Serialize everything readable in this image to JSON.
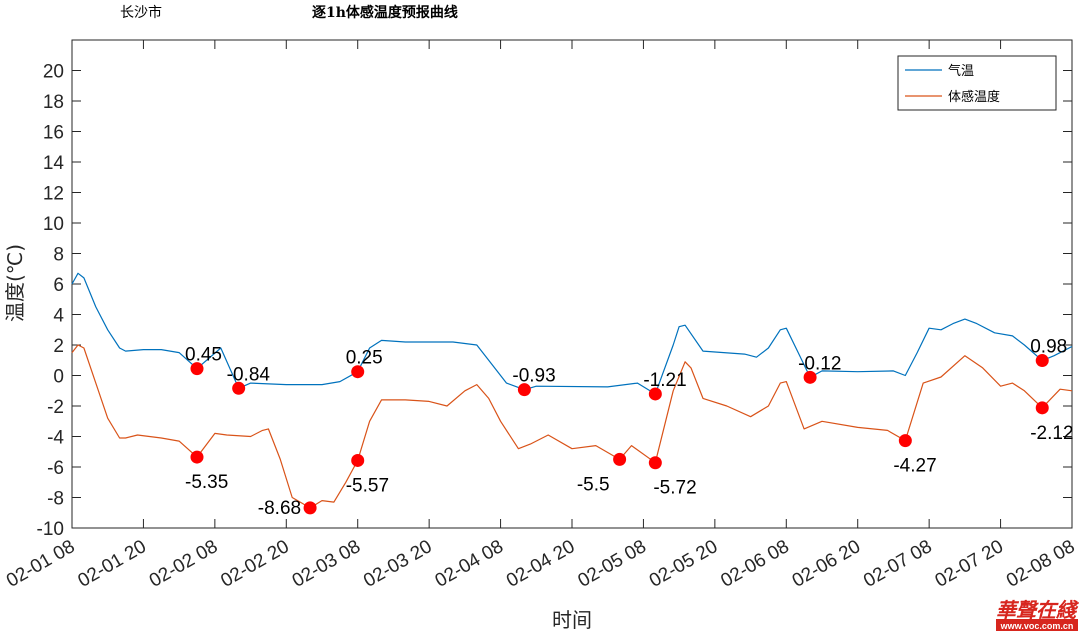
{
  "header": {
    "city": "长沙市",
    "title": "逐1h体感温度预报曲线"
  },
  "watermark": {
    "logo_text": "華聲在綫",
    "url": "www.voc.com.cn"
  },
  "chart_data": {
    "type": "line",
    "title": "逐1h体感温度预报曲线",
    "xlabel": "时间",
    "ylabel": "温度(℃)",
    "ylim": [
      -10,
      22
    ],
    "xlim": [
      "02-01 08",
      "02-08 08"
    ],
    "yticks": [
      -10,
      -8,
      -6,
      -4,
      -2,
      0,
      2,
      4,
      6,
      8,
      10,
      12,
      14,
      16,
      18,
      20
    ],
    "xticks": [
      "02-01 08",
      "02-01 20",
      "02-02 08",
      "02-02 20",
      "02-03 08",
      "02-03 20",
      "02-04 08",
      "02-04 20",
      "02-05 08",
      "02-05 20",
      "02-06 08",
      "02-06 20",
      "02-07 08",
      "02-07 20",
      "02-08 08"
    ],
    "grid": false,
    "legend_position": "top-right",
    "series": [
      {
        "name": "气温",
        "color": "#0072BD",
        "points": [
          [
            "02-01 08",
            6.0
          ],
          [
            "02-01 09",
            6.7
          ],
          [
            "02-01 10",
            6.4
          ],
          [
            "02-01 12",
            4.5
          ],
          [
            "02-01 14",
            3.0
          ],
          [
            "02-01 16",
            1.8
          ],
          [
            "02-01 17",
            1.6
          ],
          [
            "02-01 20",
            1.7
          ],
          [
            "02-01 23",
            1.7
          ],
          [
            "02-02 02",
            1.5
          ],
          [
            "02-02 05",
            0.45
          ],
          [
            "02-02 09",
            1.8
          ],
          [
            "02-02 12",
            -0.84
          ],
          [
            "02-02 14",
            -0.5
          ],
          [
            "02-02 20",
            -0.6
          ],
          [
            "02-03 02",
            -0.6
          ],
          [
            "02-03 05",
            -0.4
          ],
          [
            "02-03 08",
            0.25
          ],
          [
            "02-03 10",
            1.8
          ],
          [
            "02-03 12",
            2.3
          ],
          [
            "02-03 16",
            2.2
          ],
          [
            "02-04 00",
            2.2
          ],
          [
            "02-04 04",
            2.0
          ],
          [
            "02-04 06",
            1.0
          ],
          [
            "02-04 09",
            -0.5
          ],
          [
            "02-04 12",
            -0.93
          ],
          [
            "02-04 14",
            -0.7
          ],
          [
            "02-05 02",
            -0.75
          ],
          [
            "02-05 07",
            -0.5
          ],
          [
            "02-05 10",
            -1.21
          ],
          [
            "02-05 13",
            2.0
          ],
          [
            "02-05 14",
            3.2
          ],
          [
            "02-05 15",
            3.3
          ],
          [
            "02-05 18",
            1.6
          ],
          [
            "02-06 01",
            1.4
          ],
          [
            "02-06 03",
            1.2
          ],
          [
            "02-06 05",
            1.8
          ],
          [
            "02-06 07",
            3.0
          ],
          [
            "02-06 08",
            3.1
          ],
          [
            "02-06 10",
            1.5
          ],
          [
            "02-06 12",
            -0.12
          ],
          [
            "02-06 14",
            0.3
          ],
          [
            "02-06 20",
            0.25
          ],
          [
            "02-07 02",
            0.3
          ],
          [
            "02-07 04",
            0.0
          ],
          [
            "02-07 06",
            1.5
          ],
          [
            "02-07 08",
            3.1
          ],
          [
            "02-07 10",
            3.0
          ],
          [
            "02-07 12",
            3.4
          ],
          [
            "02-07 14",
            3.7
          ],
          [
            "02-07 16",
            3.4
          ],
          [
            "02-07 19",
            2.8
          ],
          [
            "02-07 22",
            2.6
          ],
          [
            "02-08 00",
            2.0
          ],
          [
            "02-08 03",
            0.98
          ],
          [
            "02-08 05",
            1.3
          ],
          [
            "02-08 08",
            1.9
          ]
        ],
        "markers": [
          [
            "02-02 05",
            0.45,
            "0.45"
          ],
          [
            "02-02 12",
            -0.84,
            "-0.84"
          ],
          [
            "02-03 08",
            0.25,
            "0.25"
          ],
          [
            "02-04 12",
            -0.93,
            "-0.93"
          ],
          [
            "02-05 10",
            -1.21,
            "-1.21"
          ],
          [
            "02-06 12",
            -0.12,
            "-0.12"
          ],
          [
            "02-08 03",
            0.98,
            "0.98"
          ]
        ]
      },
      {
        "name": "体感温度",
        "color": "#D95319",
        "points": [
          [
            "02-01 08",
            1.5
          ],
          [
            "02-01 09",
            2.0
          ],
          [
            "02-01 10",
            1.8
          ],
          [
            "02-01 12",
            -0.5
          ],
          [
            "02-01 14",
            -2.8
          ],
          [
            "02-01 16",
            -4.1
          ],
          [
            "02-01 17",
            -4.1
          ],
          [
            "02-01 19",
            -3.9
          ],
          [
            "02-01 23",
            -4.1
          ],
          [
            "02-02 02",
            -4.3
          ],
          [
            "02-02 05",
            -5.35
          ],
          [
            "02-02 08",
            -3.8
          ],
          [
            "02-02 10",
            -3.9
          ],
          [
            "02-02 14",
            -4.0
          ],
          [
            "02-02 16",
            -3.6
          ],
          [
            "02-02 17",
            -3.5
          ],
          [
            "02-02 19",
            -5.5
          ],
          [
            "02-02 21",
            -8.0
          ],
          [
            "02-03 00",
            -8.68
          ],
          [
            "02-03 02",
            -8.2
          ],
          [
            "02-03 04",
            -8.3
          ],
          [
            "02-03 06",
            -7.0
          ],
          [
            "02-03 08",
            -5.57
          ],
          [
            "02-03 10",
            -3.0
          ],
          [
            "02-03 12",
            -1.6
          ],
          [
            "02-03 16",
            -1.6
          ],
          [
            "02-03 20",
            -1.7
          ],
          [
            "02-03 23",
            -2.0
          ],
          [
            "02-04 02",
            -1.0
          ],
          [
            "02-04 04",
            -0.6
          ],
          [
            "02-04 06",
            -1.5
          ],
          [
            "02-04 08",
            -3.0
          ],
          [
            "02-04 11",
            -4.8
          ],
          [
            "02-04 13",
            -4.5
          ],
          [
            "02-04 16",
            -3.9
          ],
          [
            "02-04 20",
            -4.8
          ],
          [
            "02-05 00",
            -4.6
          ],
          [
            "02-05 04",
            -5.5
          ],
          [
            "02-05 06",
            -4.6
          ],
          [
            "02-05 10",
            -5.72
          ],
          [
            "02-05 13",
            -1.0
          ],
          [
            "02-05 15",
            0.9
          ],
          [
            "02-05 16",
            0.5
          ],
          [
            "02-05 18",
            -1.5
          ],
          [
            "02-05 22",
            -2.0
          ],
          [
            "02-06 02",
            -2.7
          ],
          [
            "02-06 05",
            -2.0
          ],
          [
            "02-06 07",
            -0.5
          ],
          [
            "02-06 08",
            -0.4
          ],
          [
            "02-06 11",
            -3.5
          ],
          [
            "02-06 14",
            -3.0
          ],
          [
            "02-06 20",
            -3.4
          ],
          [
            "02-07 01",
            -3.6
          ],
          [
            "02-07 04",
            -4.27
          ],
          [
            "02-07 07",
            -0.5
          ],
          [
            "02-07 10",
            -0.1
          ],
          [
            "02-07 14",
            1.3
          ],
          [
            "02-07 17",
            0.5
          ],
          [
            "02-07 20",
            -0.7
          ],
          [
            "02-07 22",
            -0.5
          ],
          [
            "02-08 00",
            -1.0
          ],
          [
            "02-08 03",
            -2.12
          ],
          [
            "02-08 06",
            -0.9
          ],
          [
            "02-08 08",
            -1.0
          ]
        ],
        "markers": [
          [
            "02-02 05",
            -5.35,
            "-5.35"
          ],
          [
            "02-03 00",
            -8.68,
            "-8.68"
          ],
          [
            "02-03 08",
            -5.57,
            "-5.57"
          ],
          [
            "02-05 04",
            -5.5,
            "-5.5"
          ],
          [
            "02-05 10",
            -5.72,
            "-5.72"
          ],
          [
            "02-07 04",
            -4.27,
            "-4.27"
          ],
          [
            "02-08 03",
            -2.12,
            "-2.12"
          ]
        ]
      }
    ],
    "marker_color": "#FF0000"
  }
}
